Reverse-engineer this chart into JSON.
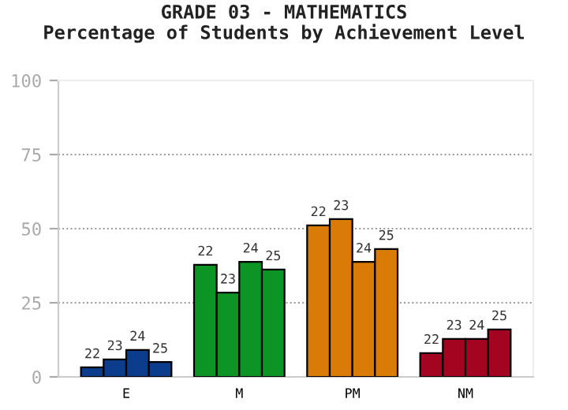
{
  "chart_data": {
    "type": "bar",
    "title": "GRADE 03 - MATHEMATICS",
    "subtitle": "Percentage of Students by Achievement Level",
    "categories": [
      "E",
      "M",
      "PM",
      "NM"
    ],
    "series": [
      {
        "name": "22",
        "colors": [
          "#0b3d8c",
          "#0c9424",
          "#d97b06",
          "#a30420"
        ],
        "values": [
          3.2,
          37.8,
          51.1,
          8.0
        ]
      },
      {
        "name": "23",
        "colors": [
          "#0b3d8c",
          "#0c9424",
          "#d97b06",
          "#a30420"
        ],
        "values": [
          5.9,
          28.4,
          53.2,
          12.8
        ]
      },
      {
        "name": "24",
        "colors": [
          "#0b3d8c",
          "#0c9424",
          "#d97b06",
          "#a30420"
        ],
        "values": [
          9.1,
          38.8,
          38.8,
          12.8
        ]
      },
      {
        "name": "25",
        "colors": [
          "#0b3d8c",
          "#0c9424",
          "#d97b06",
          "#a30420"
        ],
        "values": [
          5.0,
          36.2,
          43.1,
          16.0
        ]
      }
    ],
    "ylim": [
      0,
      100
    ],
    "yticks": [
      0,
      25,
      50,
      75,
      100
    ],
    "grid": "y",
    "legend": false
  }
}
